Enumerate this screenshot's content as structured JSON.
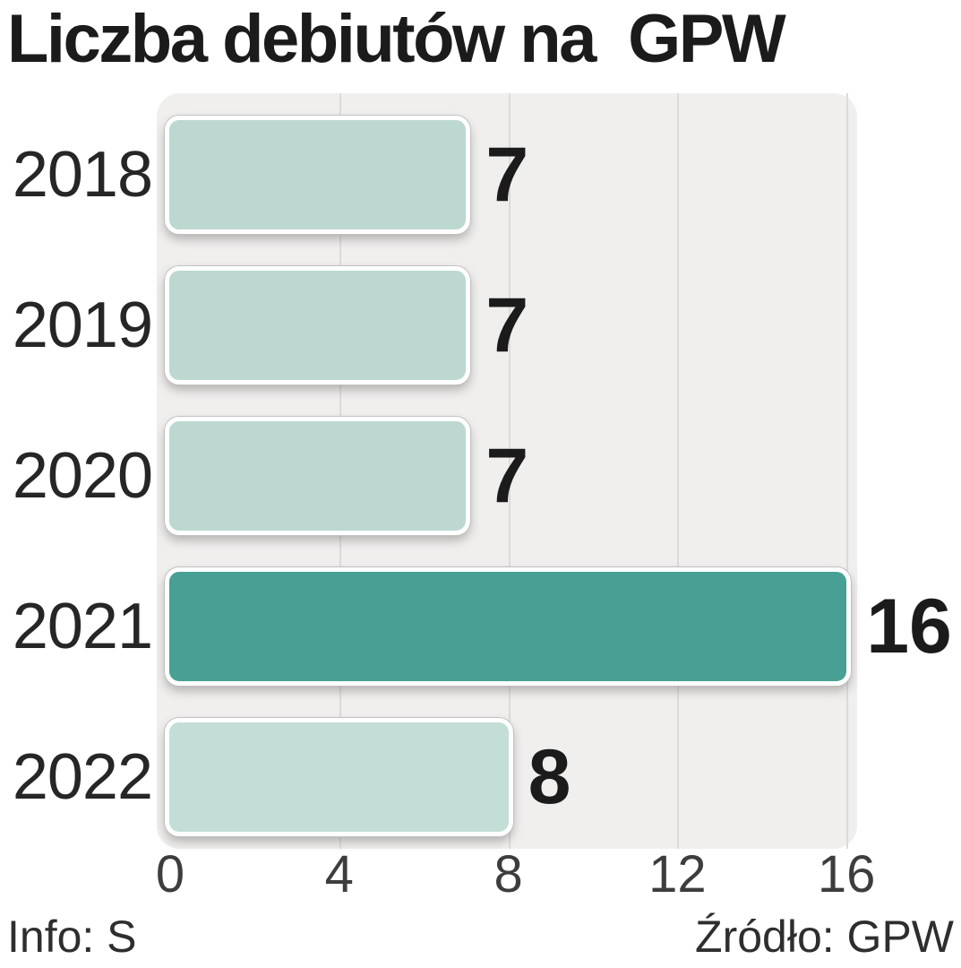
{
  "title": "Liczba debiutów na  GPW",
  "footer": {
    "info_left": "Info: S",
    "source_right": "Źródło: GPW"
  },
  "chart_data": {
    "type": "bar",
    "orientation": "horizontal",
    "title": "Liczba debiutów na  GPW",
    "categories": [
      "2018",
      "2019",
      "2020",
      "2021",
      "2022"
    ],
    "values": [
      7,
      7,
      7,
      16,
      8
    ],
    "highlight_category": "2021",
    "xlim": [
      0,
      16
    ],
    "xticks": [
      0,
      4,
      8,
      12,
      16
    ],
    "grid": "vertical",
    "bar_colors": [
      "#bcd8d0",
      "#bcd8d0",
      "#bcd8d0",
      "#48a094",
      "#c3ded6"
    ],
    "colors": {
      "bar_light": "#bcd8d0",
      "bar_light_2022": "#c3ded6",
      "bar_highlight": "#48a094",
      "plot_background": "#f0efee",
      "gridline": "#dcdbd9",
      "title_text": "#1b1b1b",
      "category_text": "#262626",
      "value_text": "#1b1b1b",
      "tick_text": "#3d3d3d",
      "footer_text": "#2e2e2e"
    }
  }
}
